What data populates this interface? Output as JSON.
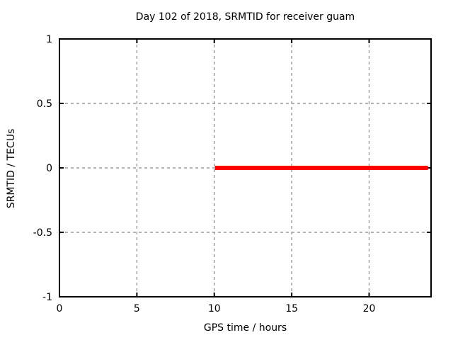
{
  "chart_data": {
    "type": "line",
    "title": "Day 102 of 2018, SRMTID for receiver guam",
    "xlabel": "GPS time / hours",
    "ylabel": "SRMTID / TECUs",
    "xlim": [
      0,
      24
    ],
    "ylim": [
      -1,
      1
    ],
    "xticks": [
      0,
      5,
      10,
      15,
      20
    ],
    "xtick_labels": [
      "0",
      "5",
      "10",
      "15",
      "20"
    ],
    "yticks": [
      1,
      0.5,
      0,
      -0.5,
      -1
    ],
    "ytick_labels": [
      "1",
      "0.5",
      "0",
      "-0.5",
      "-1"
    ],
    "grid": true,
    "grid_style": "dashed",
    "legend_position": "none",
    "series": [
      {
        "name": "SRMTID",
        "color": "#ff0000",
        "line_width": 6,
        "x": [
          10.05,
          23.8
        ],
        "y": [
          0,
          0
        ]
      }
    ],
    "colors": {
      "background": "#ffffff",
      "border": "#000000",
      "grid": "#9a9a9a",
      "text": "#000000",
      "line": "#ff0000"
    }
  }
}
